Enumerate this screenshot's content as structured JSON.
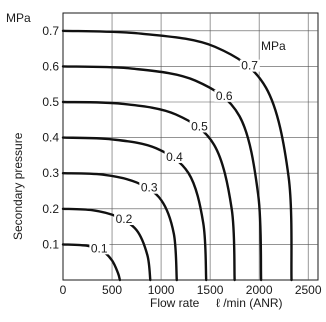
{
  "chart_data": {
    "type": "line",
    "y_unit": "MPa",
    "xlabel": "Flow rate",
    "xunit": "ℓ /min (ANR)",
    "ylabel": "Secondary pressure",
    "legend_title": "MPa",
    "xlim": [
      0,
      2600
    ],
    "ylim": [
      0,
      0.75
    ],
    "x_ticks": [
      0,
      500,
      1000,
      1500,
      2000,
      2500
    ],
    "x_tick_labels": [
      "0",
      "500",
      "1000",
      "1500",
      "2000",
      "2500"
    ],
    "y_ticks": [
      0.1,
      0.2,
      0.3,
      0.4,
      0.5,
      0.6,
      0.7
    ],
    "y_tick_labels": [
      "0.1",
      "0.2",
      "0.3",
      "0.4",
      "0.5",
      "0.6",
      "0.7"
    ],
    "grid": true,
    "series": [
      {
        "name": "0.1",
        "label": "0.1",
        "points": [
          [
            0,
            0.1
          ],
          [
            250,
            0.096
          ],
          [
            400,
            0.082
          ],
          [
            500,
            0.055
          ],
          [
            560,
            0.02
          ],
          [
            580,
            0
          ]
        ]
      },
      {
        "name": "0.2",
        "label": "0.2",
        "points": [
          [
            0,
            0.2
          ],
          [
            300,
            0.196
          ],
          [
            550,
            0.178
          ],
          [
            750,
            0.14
          ],
          [
            860,
            0.07
          ],
          [
            890,
            0
          ]
        ]
      },
      {
        "name": "0.3",
        "label": "0.3",
        "points": [
          [
            0,
            0.3
          ],
          [
            400,
            0.296
          ],
          [
            750,
            0.274
          ],
          [
            1000,
            0.225
          ],
          [
            1130,
            0.13
          ],
          [
            1160,
            0
          ]
        ]
      },
      {
        "name": "0.4",
        "label": "0.4",
        "points": [
          [
            0,
            0.4
          ],
          [
            500,
            0.395
          ],
          [
            950,
            0.37
          ],
          [
            1280,
            0.3
          ],
          [
            1430,
            0.16
          ],
          [
            1460,
            0
          ]
        ]
      },
      {
        "name": "0.5",
        "label": "0.5",
        "points": [
          [
            0,
            0.5
          ],
          [
            600,
            0.495
          ],
          [
            1150,
            0.465
          ],
          [
            1540,
            0.38
          ],
          [
            1720,
            0.2
          ],
          [
            1750,
            0
          ]
        ]
      },
      {
        "name": "0.6",
        "label": "0.6",
        "points": [
          [
            0,
            0.6
          ],
          [
            700,
            0.594
          ],
          [
            1350,
            0.56
          ],
          [
            1800,
            0.46
          ],
          [
            1990,
            0.24
          ],
          [
            2020,
            0
          ]
        ]
      },
      {
        "name": "0.7",
        "label": "0.7",
        "points": [
          [
            0,
            0.7
          ],
          [
            800,
            0.692
          ],
          [
            1550,
            0.655
          ],
          [
            2070,
            0.54
          ],
          [
            2300,
            0.29
          ],
          [
            2330,
            0
          ]
        ]
      }
    ]
  }
}
